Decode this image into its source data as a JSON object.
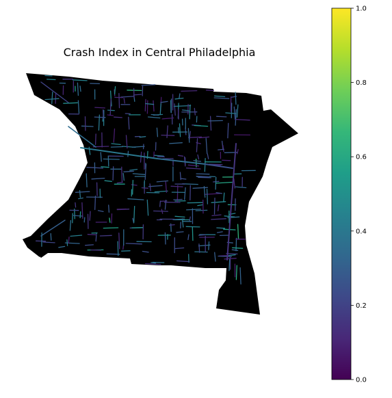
{
  "title": "Crash Index in Central Philadelphia",
  "map": {
    "fill_color": "#000000",
    "segment_values": [
      0.1,
      0.15,
      0.2,
      0.25,
      0.3,
      0.35,
      0.4,
      0.45,
      0.5,
      0.55
    ]
  },
  "colorbar": {
    "colormap": "viridis",
    "min": 0.0,
    "max": 1.0,
    "ticks": [
      "0.0",
      "0.2",
      "0.4",
      "0.6",
      "0.8",
      "1.0"
    ],
    "colors": [
      "#440154",
      "#482878",
      "#3e4989",
      "#31688e",
      "#26828e",
      "#1f9e89",
      "#35b779",
      "#6ece58",
      "#b5de2b",
      "#fde725"
    ]
  }
}
